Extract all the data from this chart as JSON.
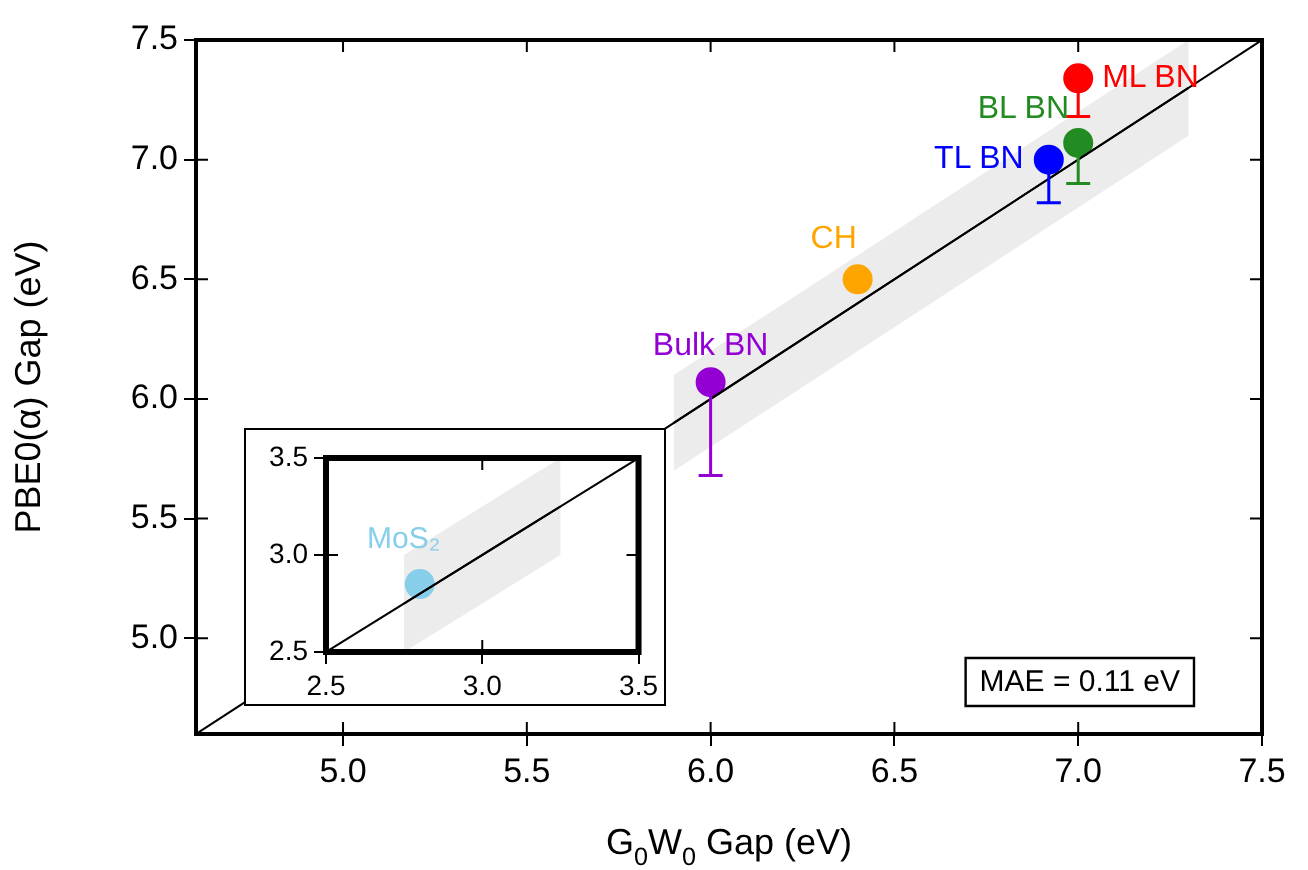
{
  "chart_data": [
    {
      "type": "scatter",
      "xlabel": "G$_{0}$W$_{0}$ Gap (eV)",
      "ylabel": "PBE0(α) Gap (eV)",
      "xlim": [
        4.6,
        7.5
      ],
      "ylim": [
        4.6,
        7.5
      ],
      "xticks": [
        {
          "value": 5,
          "label": "5.0"
        },
        {
          "value": 5.5,
          "label": "5.5"
        },
        {
          "value": 6,
          "label": "6.0"
        },
        {
          "value": 6.5,
          "label": "6.5"
        },
        {
          "value": 7,
          "label": "7.0"
        },
        {
          "value": 7.5,
          "label": "7.5"
        }
      ],
      "yticks": [
        {
          "value": 5,
          "label": "5.0"
        },
        {
          "value": 5.5,
          "label": "5.5"
        },
        {
          "value": 6,
          "label": "6.0"
        },
        {
          "value": 6.5,
          "label": "6.5"
        },
        {
          "value": 7,
          "label": "7.0"
        },
        {
          "value": 7.5,
          "label": "7.5"
        }
      ],
      "grid": false,
      "legend": false,
      "marker": "circle",
      "annotations": [
        "MAE = 0.11 eV"
      ],
      "series": [
        {
          "type": "line",
          "marker": "none",
          "color": "#000000",
          "x": [
            5.9,
            7.3
          ],
          "values": [
            5.9,
            7.3
          ],
          "lower": [
            5.7,
            7.1
          ],
          "upper": [
            6.1,
            7.5
          ]
        },
        {
          "type": "line",
          "marker": "none",
          "color": "#000000",
          "x": [
            4.6,
            7.5
          ],
          "values": [
            4.6,
            7.5
          ]
        },
        {
          "name": "ML BN",
          "color": "#ff0000",
          "x": [
            7.0
          ],
          "values": [
            7.34
          ],
          "errors": [
            [
              7.18,
              7.34
            ]
          ]
        },
        {
          "name": "BL BN",
          "color": "#228b22",
          "x": [
            7.0
          ],
          "values": [
            7.07
          ],
          "errors": [
            [
              6.9,
              7.07
            ]
          ]
        },
        {
          "name": "TL BN",
          "color": "#0000ff",
          "x": [
            6.92
          ],
          "values": [
            7.0
          ],
          "errors": [
            [
              6.82,
              7.0
            ]
          ]
        },
        {
          "name": "CH",
          "color": "#ffa500",
          "x": [
            6.4
          ],
          "values": [
            6.5
          ]
        },
        {
          "name": "Bulk BN",
          "color": "#9400d3",
          "x": [
            6.0
          ],
          "values": [
            6.07
          ],
          "errors": [
            [
              5.68,
              6.07
            ]
          ]
        }
      ]
    },
    {
      "type": "scatter",
      "xlim": [
        2.5,
        3.5
      ],
      "ylim": [
        2.5,
        3.5
      ],
      "xticks": [
        {
          "value": 2.5,
          "label": "2.5"
        },
        {
          "value": 3,
          "label": "3.0"
        },
        {
          "value": 3.5,
          "label": "3.5"
        }
      ],
      "yticks": [
        {
          "value": 2.5,
          "label": "2.5"
        },
        {
          "value": 3,
          "label": "3.0"
        },
        {
          "value": 3.5,
          "label": "3.5"
        }
      ],
      "grid": false,
      "legend": false,
      "marker": "circle",
      "series": [
        {
          "type": "line",
          "marker": "none",
          "color": "#000000",
          "x": [
            2.75,
            3.25
          ],
          "values": [
            2.75,
            3.25
          ],
          "lower": [
            2.5,
            3.0
          ],
          "upper": [
            3.0,
            3.5
          ]
        },
        {
          "type": "line",
          "marker": "none",
          "color": "#000000",
          "x": [
            2.5,
            3.5
          ],
          "values": [
            2.5,
            3.5
          ]
        },
        {
          "name": "MoS₂",
          "color": "#87ceeb",
          "x": [
            2.8
          ],
          "values": [
            2.85
          ]
        }
      ]
    }
  ]
}
